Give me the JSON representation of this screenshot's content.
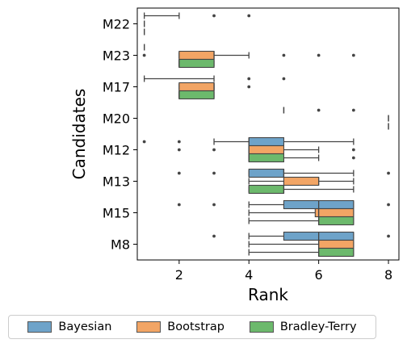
{
  "chart_data": {
    "type": "boxplot",
    "orientation": "horizontal",
    "xlabel": "Rank",
    "ylabel": "Candidates",
    "xlim": [
      0.8,
      8.3
    ],
    "xticks": [
      2,
      4,
      6,
      8
    ],
    "categories": [
      "M22",
      "M23",
      "M17",
      "M20",
      "M12",
      "M13",
      "M15",
      "M8"
    ],
    "grid": false,
    "legend_position": "bottom",
    "series": [
      {
        "name": "Bayesian",
        "color": "#6ea3c9",
        "boxes": [
          {
            "category": "M22",
            "whisker_low": 1,
            "q1": 1,
            "median": 1,
            "q3": 1,
            "whisker_high": 2,
            "outliers": [
              3,
              4
            ]
          },
          {
            "category": "M23",
            "whisker_low": 1,
            "q1": 1,
            "median": 1,
            "q3": 1,
            "whisker_high": 1,
            "outliers": []
          },
          {
            "category": "M17",
            "whisker_low": 1,
            "q1": 1,
            "median": 1,
            "q3": 1,
            "whisker_high": 3,
            "outliers": [
              4,
              5
            ]
          },
          {
            "category": "M20",
            "whisker_low": 5,
            "q1": 5,
            "median": 5,
            "q3": 5,
            "whisker_high": 5,
            "outliers": [
              6,
              7
            ]
          },
          {
            "category": "M12",
            "whisker_low": 3,
            "q1": 4,
            "median": 4,
            "q3": 5,
            "whisker_high": 7,
            "outliers": [
              1,
              2
            ]
          },
          {
            "category": "M13",
            "whisker_low": 4,
            "q1": 4,
            "median": 5,
            "q3": 5,
            "whisker_high": 7,
            "outliers": [
              2,
              3,
              8
            ]
          },
          {
            "category": "M15",
            "whisker_low": 4,
            "q1": 5,
            "median": 6,
            "q3": 7,
            "whisker_high": 7,
            "outliers": [
              2,
              3,
              8
            ]
          },
          {
            "category": "M8",
            "whisker_low": 4,
            "q1": 5,
            "median": 6,
            "q3": 7,
            "whisker_high": 7,
            "outliers": [
              3,
              8
            ]
          }
        ]
      },
      {
        "name": "Bootstrap",
        "color": "#f2a565",
        "boxes": [
          {
            "category": "M22",
            "whisker_low": 1,
            "q1": 1,
            "median": 1,
            "q3": 1,
            "whisker_high": 1,
            "outliers": []
          },
          {
            "category": "M23",
            "whisker_low": 2,
            "q1": 2,
            "median": 3,
            "q3": 3,
            "whisker_high": 4,
            "outliers": [
              1,
              5,
              6,
              7
            ]
          },
          {
            "category": "M17",
            "whisker_low": 2,
            "q1": 2,
            "median": 3,
            "q3": 3,
            "whisker_high": 3,
            "outliers": [
              4
            ]
          },
          {
            "category": "M20",
            "whisker_low": 8,
            "q1": 8,
            "median": 8,
            "q3": 8,
            "whisker_high": 8,
            "outliers": []
          },
          {
            "category": "M12",
            "whisker_low": 4,
            "q1": 4,
            "median": 4,
            "q3": 5,
            "whisker_high": 6,
            "outliers": [
              2,
              3,
              7
            ]
          },
          {
            "category": "M13",
            "whisker_low": 4,
            "q1": 5,
            "median": 6,
            "q3": 6,
            "whisker_high": 7,
            "outliers": []
          },
          {
            "category": "M15",
            "whisker_low": 4,
            "q1": 5.9,
            "median": 6,
            "q3": 7,
            "whisker_high": 7,
            "outliers": []
          },
          {
            "category": "M8",
            "whisker_low": 4,
            "q1": 6,
            "median": 6,
            "q3": 7,
            "whisker_high": 7,
            "outliers": []
          }
        ]
      },
      {
        "name": "Bradley-Terry",
        "color": "#6cb96c",
        "boxes": [
          {
            "category": "M22",
            "whisker_low": 1,
            "q1": 1,
            "median": 1,
            "q3": 1,
            "whisker_high": 1,
            "outliers": []
          },
          {
            "category": "M23",
            "whisker_low": 2,
            "q1": 2,
            "median": 2,
            "q3": 3,
            "whisker_high": 3,
            "outliers": []
          },
          {
            "category": "M17",
            "whisker_low": 2,
            "q1": 2,
            "median": 2,
            "q3": 3,
            "whisker_high": 3,
            "outliers": []
          },
          {
            "category": "M20",
            "whisker_low": 8,
            "q1": 8,
            "median": 8,
            "q3": 8,
            "whisker_high": 8,
            "outliers": []
          },
          {
            "category": "M12",
            "whisker_low": 4,
            "q1": 4,
            "median": 4,
            "q3": 5,
            "whisker_high": 6,
            "outliers": [
              7
            ]
          },
          {
            "category": "M13",
            "whisker_low": 4,
            "q1": 4,
            "median": 5,
            "q3": 5,
            "whisker_high": 7,
            "outliers": []
          },
          {
            "category": "M15",
            "whisker_low": 4,
            "q1": 6,
            "median": 6,
            "q3": 7,
            "whisker_high": 7,
            "outliers": []
          },
          {
            "category": "M8",
            "whisker_low": 4,
            "q1": 6,
            "median": 6,
            "q3": 7,
            "whisker_high": 7,
            "outliers": []
          }
        ]
      }
    ]
  },
  "legend": {
    "items": [
      {
        "label": "Bayesian"
      },
      {
        "label": "Bootstrap"
      },
      {
        "label": "Bradley-Terry"
      }
    ]
  }
}
